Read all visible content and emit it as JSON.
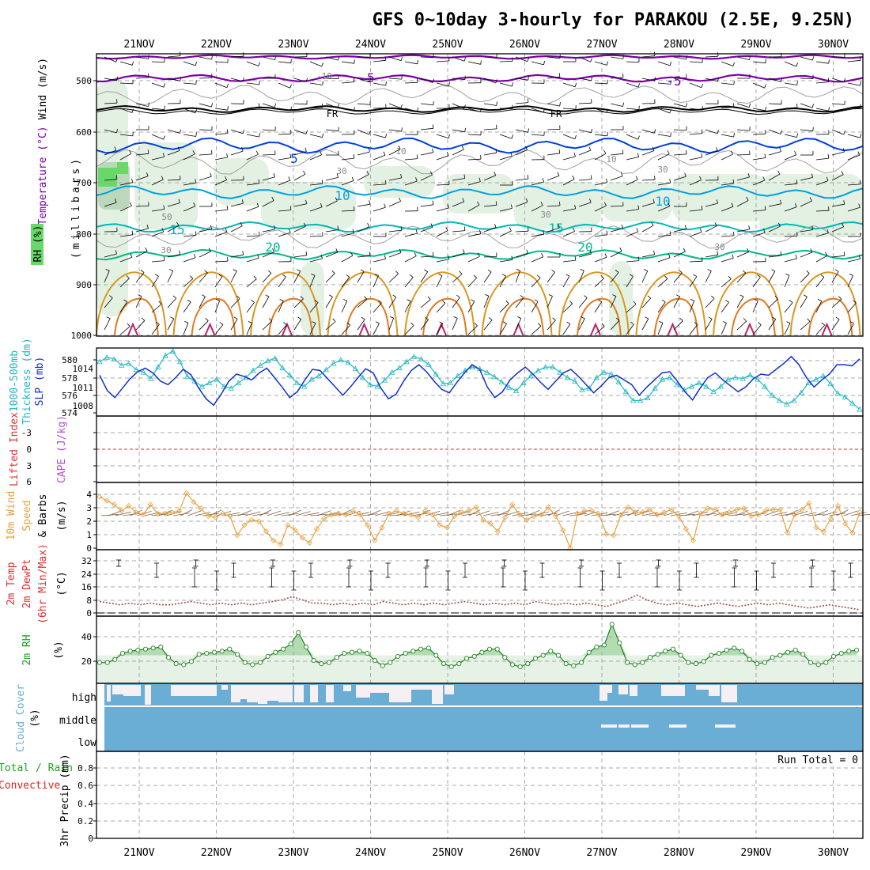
{
  "title": "GFS 0~10day 3-hourly for PARAKOU (2.5E, 9.25N)",
  "dates": [
    "21NOV",
    "22NOV",
    "23NOV",
    "24NOV",
    "25NOV",
    "26NOV",
    "27NOV",
    "28NOV",
    "29NOV",
    "30NOV"
  ],
  "colors": {
    "wind_barb": "#000000",
    "temp_cold": "#7a00a8",
    "temp_freezing": "#000000",
    "temp_5": "#0040e0",
    "temp_10": "#00a0e0",
    "temp_15": "#00b8b8",
    "temp_20": "#00b88c",
    "temp_warm": "#d89820",
    "rh_light": "#e2f1e2",
    "rh_mid": "#bcd8bc",
    "rh_high": "#68d868",
    "thickness": "#20b8c0",
    "slp": "#1030c8",
    "cape": "#b050d0",
    "lifted_index": "#e03030",
    "wind10m": "#e8a040",
    "dewpoint": "#808080",
    "rh2m_line": "#208020",
    "rh2m_fill": "#e6f2e6",
    "cloud": "#6aaed6",
    "cloud_clear": "#f4f0f4",
    "precip_total": "#20a020",
    "precip_conv": "#e02020"
  },
  "panels": {
    "upper": {
      "label_wind": "Wind (m/s)",
      "label_temp": "Temperature (°C)",
      "label_rh": "RH (%)",
      "label_p": "(millibars)",
      "yticks": [
        "500",
        "600",
        "700",
        "800",
        "900",
        "1000"
      ],
      "contour_labels": {
        "minus5": "-5",
        "minus10": "-10",
        "fr": "FR",
        "five": "5",
        "ten": "10",
        "fifteen": "15",
        "twenty": "20",
        "rh10": "10",
        "rh30": "30",
        "rh50": "50"
      }
    },
    "slp": {
      "label_thick": "1000-500mb",
      "label_thick2": "Thickness (dm)",
      "label_slp": "SLP (mb)",
      "yticks_left": [
        "580",
        "578",
        "576",
        "574"
      ],
      "yticks_right": [
        "1014",
        "1011",
        "1008"
      ]
    },
    "cape": {
      "label_li": "Lifted Index",
      "label_cape": "CAPE (J/kg)",
      "yticks": [
        "-3",
        "0",
        "3",
        "6"
      ]
    },
    "wind10m": {
      "label1": "10m Wind",
      "label2": "Speed",
      "label3": "& Barbs",
      "unit": "(m/s)",
      "yticks": [
        "4",
        "3",
        "2",
        "1",
        "0"
      ]
    },
    "temp2m": {
      "label1": "2m Temp",
      "label2": "2m DewPt",
      "label3": "(6hr Min/Max)",
      "unit": "(°C)",
      "yticks": [
        "32",
        "24",
        "16",
        "8",
        "0"
      ]
    },
    "rh2m": {
      "label": "2m RH",
      "unit": "(%)",
      "yticks": [
        "40",
        "20"
      ]
    },
    "cloud": {
      "label": "Cloud Cover",
      "unit": "(%)",
      "levels": [
        "high",
        "middle",
        "low"
      ]
    },
    "precip": {
      "label_total": "Total / Rain",
      "label_conv": "Convective",
      "label_axis": "3hr Precip (mm)",
      "yticks": [
        "0.8",
        "0.6",
        "0.4",
        "0.2",
        "0"
      ],
      "run_total": "Run Total = 0"
    }
  },
  "chart_data": [
    {
      "type": "line",
      "title": "1000-500mb Thickness (dm)",
      "x_labels": [
        "21NOV",
        "22NOV",
        "23NOV",
        "24NOV",
        "25NOV",
        "26NOV",
        "27NOV",
        "28NOV",
        "29NOV",
        "30NOV"
      ],
      "ylim": [
        574,
        581
      ],
      "values": [
        579.8,
        580.3,
        580.1,
        579.4,
        579.6,
        578.9,
        578.6,
        577.9,
        579.2,
        580.5,
        581.0,
        579.8,
        578.1,
        577.6,
        577.0,
        577.4,
        577.8,
        577.0,
        576.8,
        577.4,
        578.0,
        578.8,
        579.4,
        579.9,
        580.2,
        579.1,
        578.3,
        577.4,
        577.0,
        577.8,
        578.2,
        578.9,
        579.6,
        580.0,
        579.7,
        579.0,
        578.0,
        577.2,
        577.0,
        577.7,
        578.6,
        579.1,
        579.8,
        580.4,
        580.1,
        579.5,
        578.4,
        577.3,
        577.4,
        578.2,
        578.8,
        579.2,
        579.0,
        578.6,
        578.1,
        577.5,
        576.9,
        576.5,
        577.4,
        578.2,
        578.8,
        579.2,
        579.2,
        578.6,
        578.0,
        577.6,
        576.6,
        576.8,
        578.0,
        578.6,
        578.4,
        577.5,
        576.4,
        575.4,
        575.4,
        575.7,
        576.8,
        577.8,
        578.0,
        577.2,
        576.6,
        577.0,
        577.4,
        577.0,
        576.4,
        577.0,
        577.8,
        578.0,
        577.9,
        578.3,
        577.8,
        577.0,
        576.0,
        575.4,
        575.0,
        575.4,
        576.3,
        577.4,
        577.8,
        578.2,
        577.3,
        576.2,
        575.8,
        575.1,
        574.4
      ]
    },
    {
      "type": "line",
      "title": "SLP (mb)",
      "ylim": [
        1006,
        1016.5
      ],
      "values": [
        1012.4,
        1009.8,
        1008.6,
        1010.2,
        1011.8,
        1013.0,
        1013.6,
        1012.8,
        1011.4,
        1010.8,
        1012.0,
        1013.4,
        1012.5,
        1010.3,
        1008.4,
        1007.3,
        1009.2,
        1011.4,
        1012.6,
        1012.2,
        1011.6,
        1012.8,
        1013.6,
        1012.0,
        1010.4,
        1008.6,
        1009.6,
        1011.6,
        1013.4,
        1013.2,
        1011.8,
        1010.4,
        1009.0,
        1010.4,
        1012.0,
        1013.5,
        1012.8,
        1010.2,
        1008.4,
        1009.2,
        1011.4,
        1013.2,
        1014.2,
        1013.0,
        1011.4,
        1010.0,
        1009.4,
        1011.2,
        1012.8,
        1014.2,
        1013.4,
        1010.4,
        1008.6,
        1009.6,
        1011.6,
        1012.8,
        1013.8,
        1012.6,
        1011.2,
        1010.0,
        1011.4,
        1012.8,
        1013.4,
        1012.2,
        1010.8,
        1009.4,
        1010.6,
        1012.0,
        1012.4,
        1011.6,
        1010.8,
        1009.0,
        1010.4,
        1011.6,
        1012.8,
        1013.0,
        1011.4,
        1009.6,
        1008.2,
        1010.2,
        1012.0,
        1012.8,
        1011.6,
        1010.6,
        1009.6,
        1010.4,
        1011.8,
        1012.6,
        1012.4,
        1013.4,
        1014.4,
        1015.6,
        1014.2,
        1012.0,
        1010.4,
        1011.6,
        1012.6,
        1014.2,
        1014.2,
        1014.0,
        1015.2
      ]
    },
    {
      "type": "line",
      "title": "10m Wind Speed (m/s)",
      "ylim": [
        0,
        4.6
      ],
      "values": [
        4.0,
        3.7,
        3.4,
        2.9,
        3.3,
        2.8,
        2.6,
        3.4,
        2.7,
        2.7,
        2.8,
        2.9,
        4.3,
        3.6,
        3.1,
        2.5,
        2.4,
        2.7,
        2.5,
        1.0,
        1.8,
        2.2,
        2.1,
        1.3,
        0.6,
        0.3,
        1.8,
        1.4,
        0.8,
        0.4,
        1.5,
        2.3,
        2.6,
        2.7,
        2.6,
        2.9,
        2.6,
        1.8,
        0.6,
        1.6,
        2.7,
        2.9,
        2.7,
        2.6,
        2.4,
        2.9,
        2.6,
        1.8,
        1.6,
        2.5,
        2.8,
        2.9,
        3.2,
        2.2,
        1.9,
        1.3,
        2.4,
        3.4,
        2.6,
        2.2,
        2.5,
        2.6,
        3.2,
        2.5,
        1.4,
        0.0,
        2.7,
        2.9,
        2.9,
        2.6,
        1.1,
        1.0,
        2.6,
        3.2,
        2.8,
        2.8,
        3.0,
        2.6,
        2.8,
        3.0,
        2.5,
        1.5,
        0.6,
        2.7,
        3.1,
        3.0,
        2.6,
        2.8,
        3.0,
        3.1,
        2.5,
        2.6,
        2.9,
        3.0,
        3.0,
        1.2,
        2.6,
        3.0,
        3.5,
        1.6,
        1.3,
        2.3,
        3.3,
        1.9,
        1.2,
        2.8
      ]
    },
    {
      "type": "area",
      "title": "2m Temp (°C)",
      "ylim": [
        -2,
        37
      ],
      "max_per_day": [
        34,
        34,
        34,
        34,
        34,
        34,
        34,
        34,
        34,
        34
      ],
      "min_per_day": [
        19,
        19,
        19,
        19,
        19,
        19,
        19,
        19,
        19,
        18
      ],
      "dewpoint": [
        7,
        6,
        5,
        6,
        5,
        6,
        5,
        5,
        6,
        7,
        6,
        5,
        6,
        5,
        6,
        5,
        6,
        7,
        8,
        10,
        8,
        6,
        6,
        5,
        6,
        5,
        6,
        5,
        7,
        6,
        5,
        6,
        5,
        6,
        5,
        6,
        7,
        6,
        5,
        6,
        5,
        6,
        5,
        7,
        6,
        5,
        6,
        5,
        6,
        5,
        4,
        6,
        8,
        11,
        8,
        6,
        5,
        6,
        5,
        4,
        5,
        6,
        5,
        4,
        5,
        6,
        5,
        6,
        5,
        4,
        3,
        4,
        5,
        4,
        3,
        2
      ]
    },
    {
      "type": "area",
      "title": "2m RH (%)",
      "ylim": [
        0,
        55
      ],
      "values": [
        17,
        17,
        20,
        26,
        28,
        29,
        30,
        31,
        32,
        22,
        16,
        15,
        18,
        25,
        26,
        27,
        28,
        30,
        25,
        17,
        15,
        17,
        23,
        27,
        30,
        35,
        46,
        32,
        19,
        16,
        17,
        22,
        26,
        27,
        28,
        26,
        19,
        14,
        17,
        23,
        26,
        28,
        30,
        31,
        24,
        16,
        13,
        16,
        21,
        23,
        27,
        30,
        30,
        22,
        15,
        13,
        16,
        21,
        24,
        28,
        24,
        16,
        14,
        17,
        27,
        32,
        34,
        54,
        36,
        17,
        15,
        17,
        22,
        25,
        28,
        30,
        24,
        17,
        16,
        18,
        24,
        26,
        29,
        31,
        28,
        20,
        16,
        17,
        22,
        24,
        27,
        29,
        25,
        17,
        15,
        17,
        23,
        26,
        28,
        29
      ]
    },
    {
      "type": "bar",
      "title": "3hr Precip (mm)",
      "ylim": [
        0,
        1
      ],
      "values": [],
      "run_total": 0
    }
  ]
}
